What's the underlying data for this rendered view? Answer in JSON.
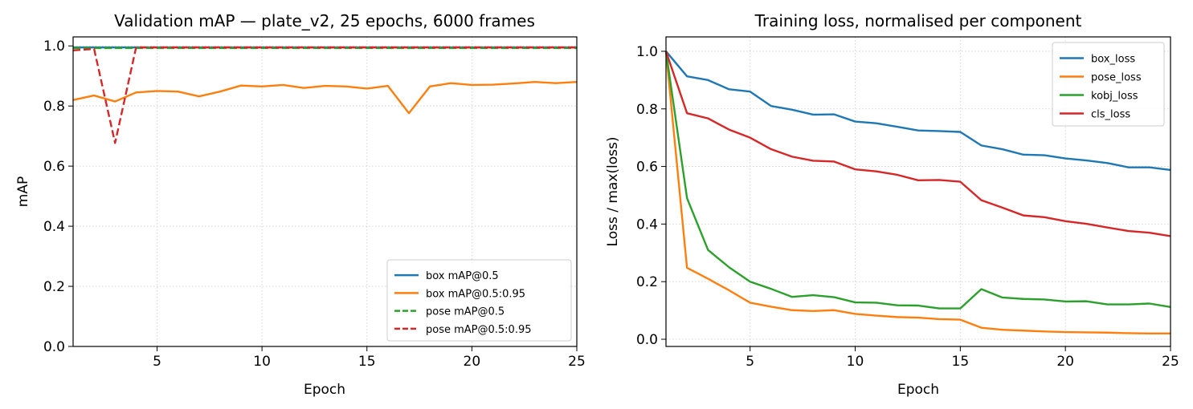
{
  "chart_data": [
    {
      "type": "line",
      "title": "Validation mAP — plate_v2, 25 epochs, 6000 frames",
      "xlabel": "Epoch",
      "ylabel": "mAP",
      "xlim": [
        1,
        25
      ],
      "ylim": [
        0,
        1.03
      ],
      "xticks": [
        5,
        10,
        15,
        20,
        25
      ],
      "yticks": [
        0.0,
        0.2,
        0.4,
        0.6,
        0.8,
        1.0
      ],
      "grid": true,
      "legend_position": "lower-right",
      "x": [
        1,
        2,
        3,
        4,
        5,
        6,
        7,
        8,
        9,
        10,
        11,
        12,
        13,
        14,
        15,
        16,
        17,
        18,
        19,
        20,
        21,
        22,
        23,
        24,
        25
      ],
      "series": [
        {
          "name": "box mAP@0.5",
          "color": "#1f77b4",
          "dash": "solid",
          "values": [
            0.995,
            0.995,
            0.995,
            0.995,
            0.995,
            0.995,
            0.995,
            0.995,
            0.995,
            0.995,
            0.995,
            0.995,
            0.995,
            0.995,
            0.995,
            0.995,
            0.995,
            0.995,
            0.995,
            0.995,
            0.995,
            0.995,
            0.995,
            0.995,
            0.995
          ]
        },
        {
          "name": "box mAP@0.5:0.95",
          "color": "#ff7f0e",
          "dash": "solid",
          "values": [
            0.82,
            0.835,
            0.815,
            0.845,
            0.85,
            0.848,
            0.832,
            0.848,
            0.868,
            0.865,
            0.87,
            0.86,
            0.867,
            0.865,
            0.858,
            0.867,
            0.776,
            0.865,
            0.876,
            0.87,
            0.871,
            0.875,
            0.88,
            0.876,
            0.88
          ]
        },
        {
          "name": "pose mAP@0.5",
          "color": "#2ca02c",
          "dash": "dashed",
          "values": [
            0.993,
            0.993,
            0.993,
            0.993,
            0.993,
            0.993,
            0.993,
            0.993,
            0.993,
            0.993,
            0.993,
            0.993,
            0.993,
            0.993,
            0.993,
            0.993,
            0.993,
            0.993,
            0.993,
            0.993,
            0.993,
            0.993,
            0.993,
            0.993,
            0.993
          ]
        },
        {
          "name": "pose mAP@0.5:0.95",
          "color": "#d62728",
          "dash": "dashed",
          "values": [
            0.985,
            0.99,
            0.677,
            0.995,
            0.995,
            0.995,
            0.995,
            0.995,
            0.995,
            0.995,
            0.995,
            0.995,
            0.995,
            0.995,
            0.995,
            0.995,
            0.995,
            0.995,
            0.995,
            0.995,
            0.995,
            0.995,
            0.995,
            0.995,
            0.995
          ]
        }
      ]
    },
    {
      "type": "line",
      "title": "Training loss, normalised per component",
      "xlabel": "Epoch",
      "ylabel": "Loss / max(loss)",
      "xlim": [
        1,
        25
      ],
      "ylim": [
        -0.025,
        1.05
      ],
      "xticks": [
        5,
        10,
        15,
        20,
        25
      ],
      "yticks": [
        0.0,
        0.2,
        0.4,
        0.6,
        0.8,
        1.0
      ],
      "grid": true,
      "legend_position": "upper-right",
      "x": [
        1,
        2,
        3,
        4,
        5,
        6,
        7,
        8,
        9,
        10,
        11,
        12,
        13,
        14,
        15,
        16,
        17,
        18,
        19,
        20,
        21,
        22,
        23,
        24,
        25
      ],
      "series": [
        {
          "name": "box_loss",
          "color": "#1f77b4",
          "dash": "solid",
          "values": [
            1.0,
            0.913,
            0.9,
            0.868,
            0.86,
            0.81,
            0.797,
            0.78,
            0.781,
            0.756,
            0.75,
            0.738,
            0.725,
            0.723,
            0.72,
            0.673,
            0.66,
            0.641,
            0.639,
            0.628,
            0.621,
            0.612,
            0.597,
            0.597,
            0.588
          ]
        },
        {
          "name": "pose_loss",
          "color": "#ff7f0e",
          "dash": "solid",
          "values": [
            1.0,
            0.248,
            0.21,
            0.17,
            0.127,
            0.113,
            0.101,
            0.098,
            0.101,
            0.088,
            0.082,
            0.077,
            0.075,
            0.07,
            0.068,
            0.04,
            0.033,
            0.03,
            0.027,
            0.025,
            0.024,
            0.023,
            0.021,
            0.02,
            0.02
          ]
        },
        {
          "name": "kobj_loss",
          "color": "#2ca02c",
          "dash": "solid",
          "values": [
            1.0,
            0.49,
            0.31,
            0.25,
            0.2,
            0.175,
            0.147,
            0.153,
            0.146,
            0.128,
            0.127,
            0.118,
            0.117,
            0.107,
            0.107,
            0.174,
            0.145,
            0.14,
            0.138,
            0.131,
            0.132,
            0.121,
            0.121,
            0.124,
            0.112
          ]
        },
        {
          "name": "cls_loss",
          "color": "#d62728",
          "dash": "solid",
          "values": [
            1.0,
            0.785,
            0.767,
            0.728,
            0.7,
            0.66,
            0.634,
            0.62,
            0.617,
            0.59,
            0.583,
            0.571,
            0.552,
            0.553,
            0.547,
            0.483,
            0.457,
            0.43,
            0.424,
            0.41,
            0.401,
            0.388,
            0.376,
            0.37,
            0.358
          ]
        }
      ]
    }
  ]
}
